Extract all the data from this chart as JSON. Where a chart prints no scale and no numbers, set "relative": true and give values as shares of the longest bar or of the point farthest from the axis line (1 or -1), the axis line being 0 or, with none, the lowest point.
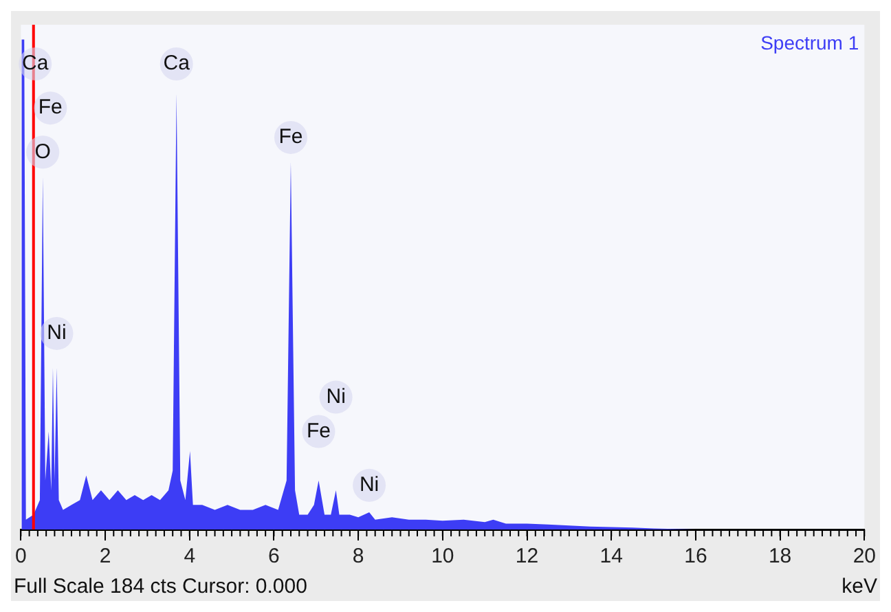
{
  "chart_data": {
    "type": "area",
    "relative": true,
    "xlabel": "keV",
    "xlim": [
      0,
      20
    ],
    "xticks": [
      0,
      2,
      4,
      6,
      8,
      10,
      12,
      14,
      16,
      18,
      20
    ],
    "tick_labels": "x",
    "grid": false,
    "legend": "top right",
    "marker": "none",
    "series": [
      {
        "name": "Spectrum 1",
        "color": "#3d3df5",
        "x": [
          0,
          0.02,
          0.08,
          0.12,
          0.3,
          0.45,
          0.52,
          0.58,
          0.66,
          0.72,
          0.76,
          0.8,
          0.85,
          0.9,
          1.0,
          1.2,
          1.4,
          1.55,
          1.7,
          1.9,
          2.1,
          2.3,
          2.5,
          2.7,
          2.9,
          3.1,
          3.3,
          3.5,
          3.6,
          3.69,
          3.78,
          3.9,
          4.01,
          4.08,
          4.3,
          4.6,
          4.9,
          5.2,
          5.5,
          5.8,
          6.1,
          6.3,
          6.4,
          6.5,
          6.6,
          6.8,
          6.95,
          7.06,
          7.2,
          7.35,
          7.47,
          7.55,
          7.8,
          8.0,
          8.26,
          8.4,
          8.8,
          9.2,
          9.6,
          10,
          10.5,
          11,
          11.2,
          11.5,
          12,
          12.5,
          13,
          13.5,
          14,
          14.5,
          15,
          16,
          20
        ],
        "values": [
          0,
          1.0,
          1.0,
          0.02,
          0.03,
          0.06,
          0.72,
          0.1,
          0.2,
          0.08,
          0.33,
          0.1,
          0.33,
          0.06,
          0.04,
          0.05,
          0.06,
          0.11,
          0.06,
          0.08,
          0.06,
          0.08,
          0.06,
          0.07,
          0.06,
          0.07,
          0.06,
          0.08,
          0.12,
          0.89,
          0.1,
          0.06,
          0.16,
          0.05,
          0.05,
          0.04,
          0.05,
          0.04,
          0.04,
          0.05,
          0.04,
          0.1,
          0.75,
          0.08,
          0.03,
          0.03,
          0.05,
          0.1,
          0.03,
          0.03,
          0.08,
          0.03,
          0.03,
          0.025,
          0.035,
          0.02,
          0.025,
          0.02,
          0.02,
          0.018,
          0.02,
          0.015,
          0.02,
          0.012,
          0.012,
          0.01,
          0.008,
          0.006,
          0.005,
          0.004,
          0.002,
          0,
          0
        ]
      }
    ],
    "ref_lines": [
      {
        "axis": "x",
        "value": 0.3,
        "color": "#ff0000"
      }
    ],
    "annotations": [
      {
        "text": "Ca",
        "x": 0.34,
        "y": 0.95
      },
      {
        "text": "Fe",
        "x": 0.7,
        "y": 0.86
      },
      {
        "text": "O",
        "x": 0.52,
        "y": 0.77
      },
      {
        "text": "Ni",
        "x": 0.85,
        "y": 0.4
      },
      {
        "text": "Ca",
        "x": 3.69,
        "y": 0.95
      },
      {
        "text": "Fe",
        "x": 6.4,
        "y": 0.8
      },
      {
        "text": "Fe",
        "x": 7.06,
        "y": 0.2
      },
      {
        "text": "Ni",
        "x": 7.47,
        "y": 0.27
      },
      {
        "text": "Ni",
        "x": 8.26,
        "y": 0.09
      },
      "Full Scale 184 cts Cursor: 0.000"
    ]
  }
}
